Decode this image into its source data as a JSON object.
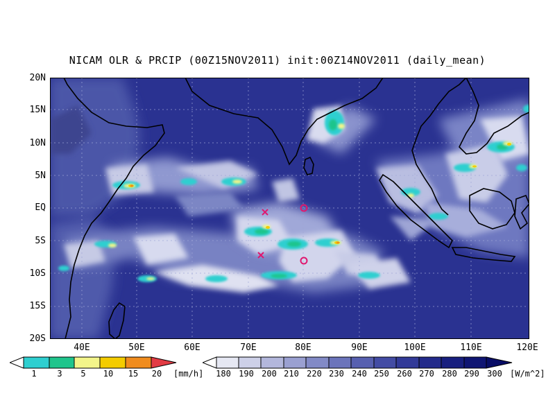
{
  "title": "NICAM OLR & PRCIP (00Z15NOV2011) init:00Z14NOV2011 (daily_mean)",
  "lat_ticks": [
    "20N",
    "15N",
    "10N",
    "5N",
    "EQ",
    "5S",
    "10S",
    "15S",
    "20S"
  ],
  "lon_ticks": [
    "40E",
    "50E",
    "60E",
    "70E",
    "80E",
    "90E",
    "100E",
    "110E",
    "120E"
  ],
  "precip_colorbar": {
    "labels": [
      "1",
      "3",
      "5",
      "10",
      "15",
      "20"
    ],
    "unit": "[mm/h]",
    "colors": [
      "#ffffff",
      "#2ecfd0",
      "#1fc58c",
      "#f3f58a",
      "#f4cc00",
      "#f08c1e",
      "#e23b44"
    ]
  },
  "olr_colorbar": {
    "labels": [
      "180",
      "190",
      "200",
      "210",
      "220",
      "230",
      "240",
      "250",
      "260",
      "270",
      "280",
      "290",
      "300"
    ],
    "unit": "[W/m^2]",
    "colors": [
      "#ffffff",
      "#e6e8f3",
      "#cdd0e8",
      "#b3b7dc",
      "#9aa0d1",
      "#828ac6",
      "#6b74bb",
      "#5760b0",
      "#434ca4",
      "#323a98",
      "#232b8b",
      "#181f7f",
      "#0f1573",
      "#080d66"
    ]
  },
  "markers": [
    {
      "type": "x",
      "lon": 73.3,
      "lat": -0.6,
      "color": "#e0176f"
    },
    {
      "type": "x",
      "lon": 72.7,
      "lat": -7.3,
      "color": "#e0176f"
    },
    {
      "type": "circle",
      "lon": 80.0,
      "lat": 0.0,
      "color": "#e0176f"
    },
    {
      "type": "circle",
      "lon": 80.0,
      "lat": -8.0,
      "color": "#e0176f"
    }
  ]
}
